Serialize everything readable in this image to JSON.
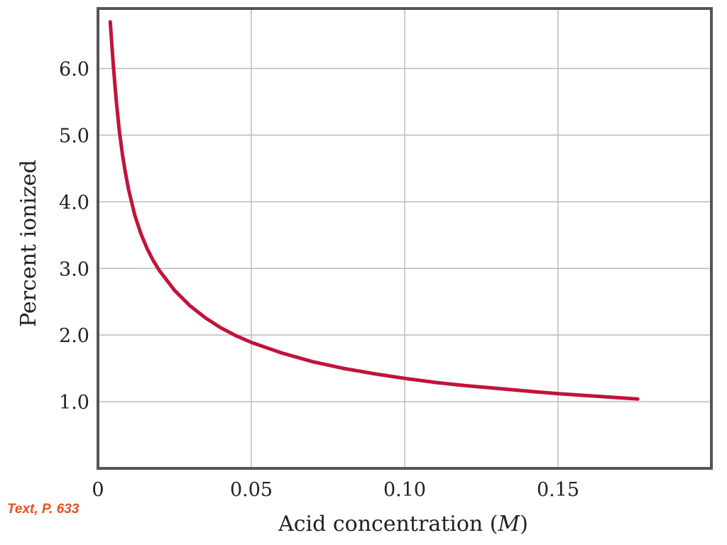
{
  "source_note": "Text, P. 633",
  "colors": {
    "curve": "#c0143c",
    "grid": "#bbbbbb",
    "frame": "#555555",
    "note": "#e8501e"
  },
  "chart_data": {
    "type": "line",
    "xlabel": "Acid concentration (M)",
    "xlabel_parts": {
      "before": "Acid concentration (",
      "italic": "M",
      "after": ")"
    },
    "ylabel": "Percent ionized",
    "xlim": [
      0,
      0.2
    ],
    "ylim": [
      0,
      6.9
    ],
    "xticks": [
      0,
      0.05,
      0.1,
      0.15
    ],
    "xtick_labels": [
      "0",
      "0.05",
      "0.10",
      "0.15"
    ],
    "yticks": [
      1.0,
      2.0,
      3.0,
      4.0,
      5.0,
      6.0
    ],
    "ytick_labels": [
      "1.0",
      "2.0",
      "3.0",
      "4.0",
      "5.0",
      "6.0"
    ],
    "xgrid": [
      0.05,
      0.1,
      0.15
    ],
    "grid": true,
    "series": [
      {
        "x": [
          0.004,
          0.005,
          0.006,
          0.007,
          0.008,
          0.009,
          0.01,
          0.012,
          0.014,
          0.016,
          0.018,
          0.02,
          0.025,
          0.03,
          0.035,
          0.04,
          0.045,
          0.05,
          0.06,
          0.07,
          0.08,
          0.09,
          0.1,
          0.11,
          0.12,
          0.13,
          0.14,
          0.15,
          0.16,
          0.17,
          0.176
        ],
        "y": [
          6.7,
          6.05,
          5.5,
          5.05,
          4.7,
          4.42,
          4.18,
          3.8,
          3.52,
          3.3,
          3.12,
          2.97,
          2.67,
          2.44,
          2.26,
          2.11,
          1.99,
          1.89,
          1.73,
          1.6,
          1.5,
          1.42,
          1.35,
          1.29,
          1.24,
          1.2,
          1.16,
          1.12,
          1.09,
          1.06,
          1.04
        ]
      }
    ]
  }
}
